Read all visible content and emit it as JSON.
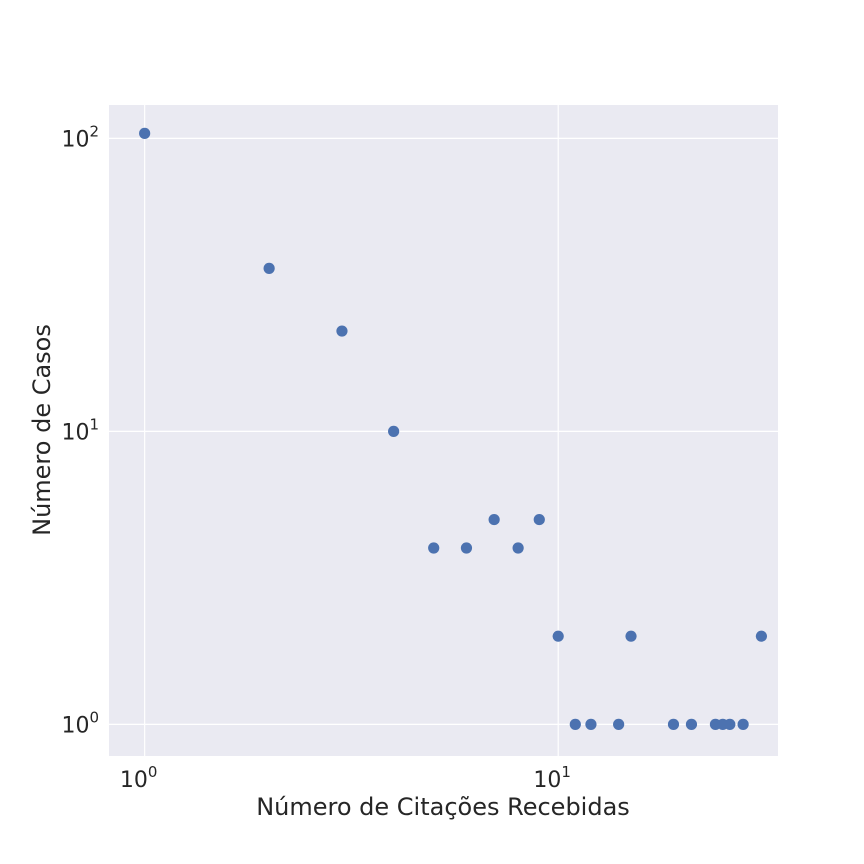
{
  "chart_data": {
    "type": "scatter",
    "title": "",
    "xlabel": "Número de Citações Recebidas",
    "ylabel": "Número de Casos",
    "xscale": "log",
    "yscale": "log",
    "xlim": [
      0.82,
      34
    ],
    "ylim": [
      0.78,
      130
    ],
    "grid": true,
    "marker_color": "#4C72B0",
    "background_color": "#EAEAF2",
    "xticks": [
      {
        "value": 1,
        "base": "10",
        "exp": "0"
      },
      {
        "value": 10,
        "base": "10",
        "exp": "1"
      }
    ],
    "yticks": [
      {
        "value": 1,
        "base": "10",
        "exp": "0"
      },
      {
        "value": 10,
        "base": "10",
        "exp": "1"
      },
      {
        "value": 100,
        "base": "10",
        "exp": "2"
      }
    ],
    "points": [
      {
        "x": 1,
        "y": 104
      },
      {
        "x": 2,
        "y": 36
      },
      {
        "x": 3,
        "y": 22
      },
      {
        "x": 4,
        "y": 10
      },
      {
        "x": 5,
        "y": 4
      },
      {
        "x": 6,
        "y": 4
      },
      {
        "x": 7,
        "y": 5
      },
      {
        "x": 8,
        "y": 4
      },
      {
        "x": 9,
        "y": 5
      },
      {
        "x": 10,
        "y": 2
      },
      {
        "x": 11,
        "y": 1
      },
      {
        "x": 12,
        "y": 1
      },
      {
        "x": 14,
        "y": 1
      },
      {
        "x": 15,
        "y": 2
      },
      {
        "x": 19,
        "y": 1
      },
      {
        "x": 21,
        "y": 1
      },
      {
        "x": 24,
        "y": 1
      },
      {
        "x": 25,
        "y": 1
      },
      {
        "x": 26,
        "y": 1
      },
      {
        "x": 28,
        "y": 1
      },
      {
        "x": 31,
        "y": 2
      }
    ]
  }
}
